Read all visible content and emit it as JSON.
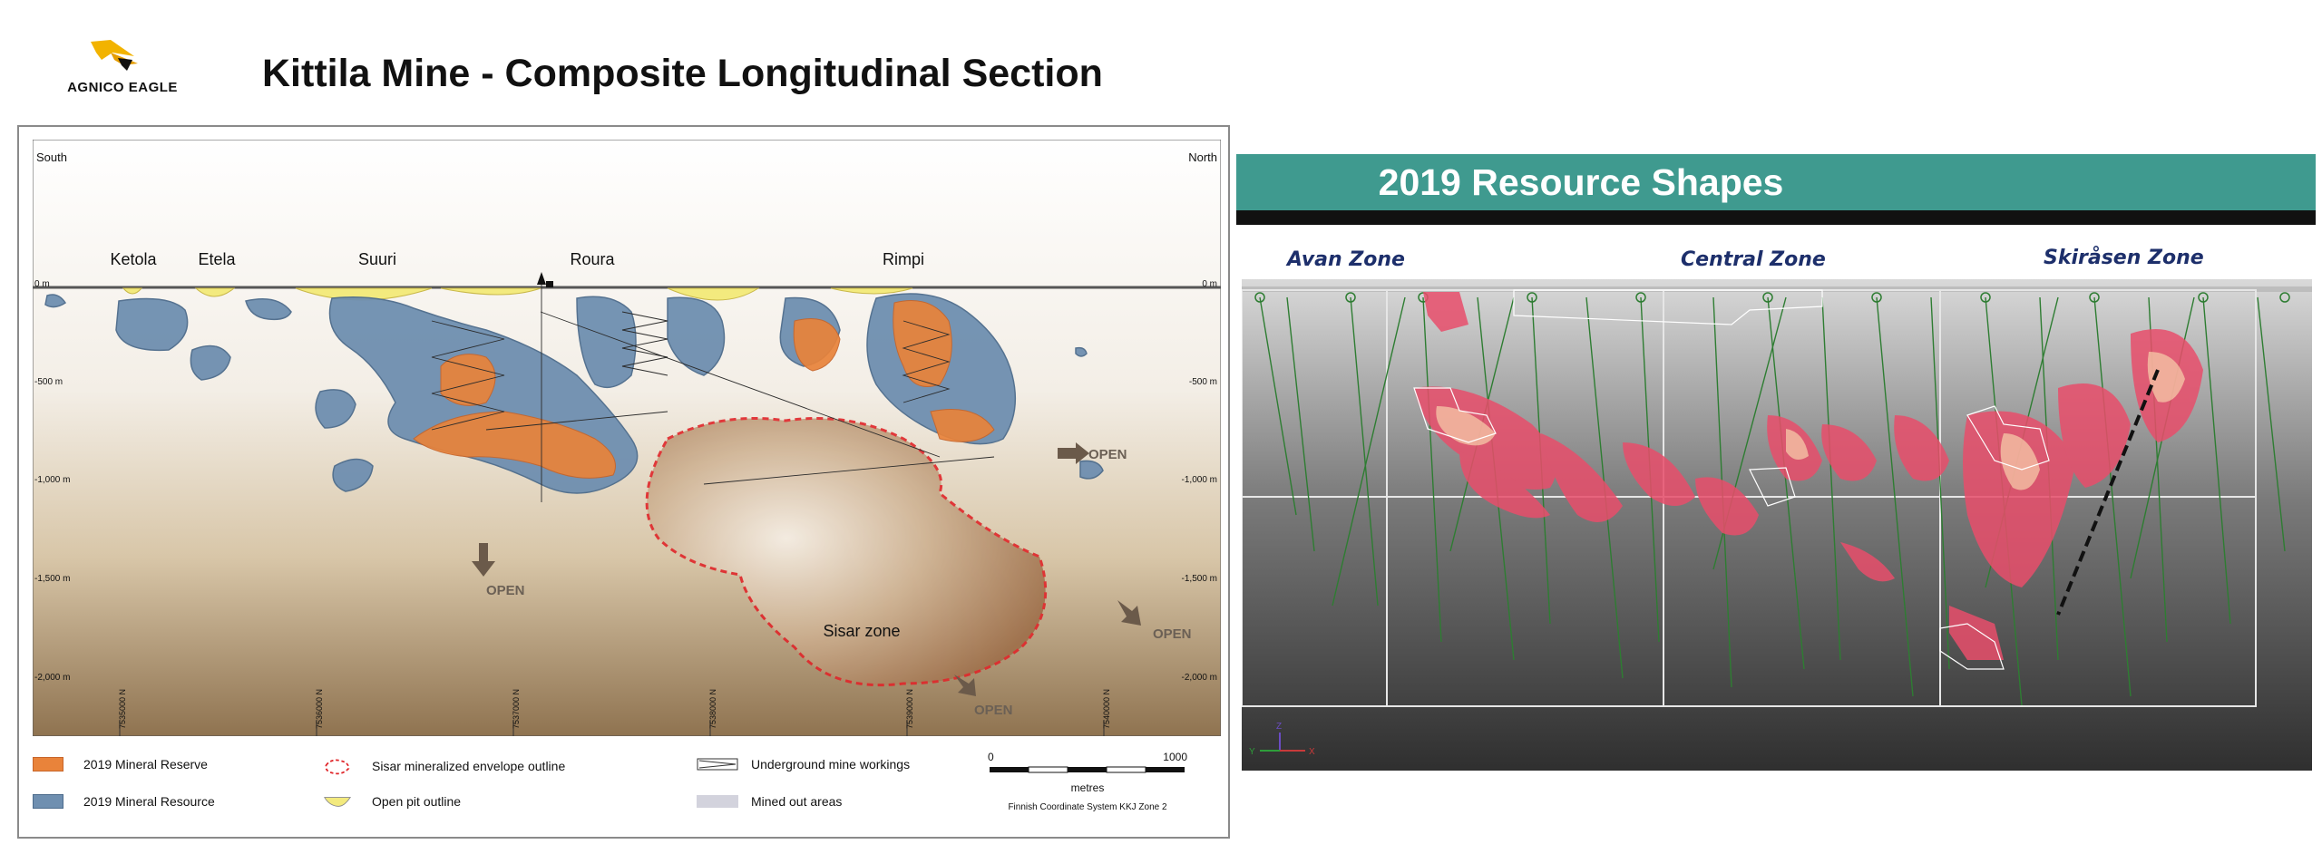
{
  "header": {
    "logo_text": "AGNICO EAGLE",
    "title": "Kittila Mine - Composite Longitudinal Section"
  },
  "section": {
    "direction_left": "South",
    "direction_right": "North",
    "areas": [
      "Ketola",
      "Etela",
      "Suuri",
      "Roura",
      "Rimpi"
    ],
    "depth_labels": [
      "0 m",
      "-500 m",
      "-1,000 m",
      "-1,500 m",
      "-2,000 m"
    ],
    "northings": [
      "7535000 N",
      "7536000 N",
      "7537000 N",
      "7538000 N",
      "7539000 N",
      "7540000 N"
    ],
    "open_label": "OPEN",
    "sisar_label": "Sisar zone",
    "colors": {
      "reserve": "#e9833a",
      "resource": "#6f8fb0",
      "sisar_outline": "#e0262a",
      "pit": "#f3ea7e",
      "mined": "#d3d3dd"
    }
  },
  "legend": {
    "reserve": "2019 Mineral Reserve",
    "resource": "2019 Mineral Resource",
    "sisar": "Sisar mineralized envelope outline",
    "pit": "Open pit outline",
    "workings": "Underground mine workings",
    "mined": "Mined out areas",
    "scale_start": "0",
    "scale_end": "1000",
    "scale_unit": "metres",
    "coordinate_system": "Finnish Coordinate System KKJ Zone 2"
  },
  "resource_shapes": {
    "title": "2019 Resource Shapes",
    "zones": [
      "Avan Zone",
      "Central Zone",
      "Skiråsen Zone"
    ],
    "axis_glyphs": {
      "y": "Y",
      "x": "X",
      "z": "Z"
    },
    "colors": {
      "banner": "#3f9a8f",
      "zone_text": "#1d2f6b",
      "drillhole": "#2e7d32",
      "ore": "#e84e6b"
    }
  }
}
